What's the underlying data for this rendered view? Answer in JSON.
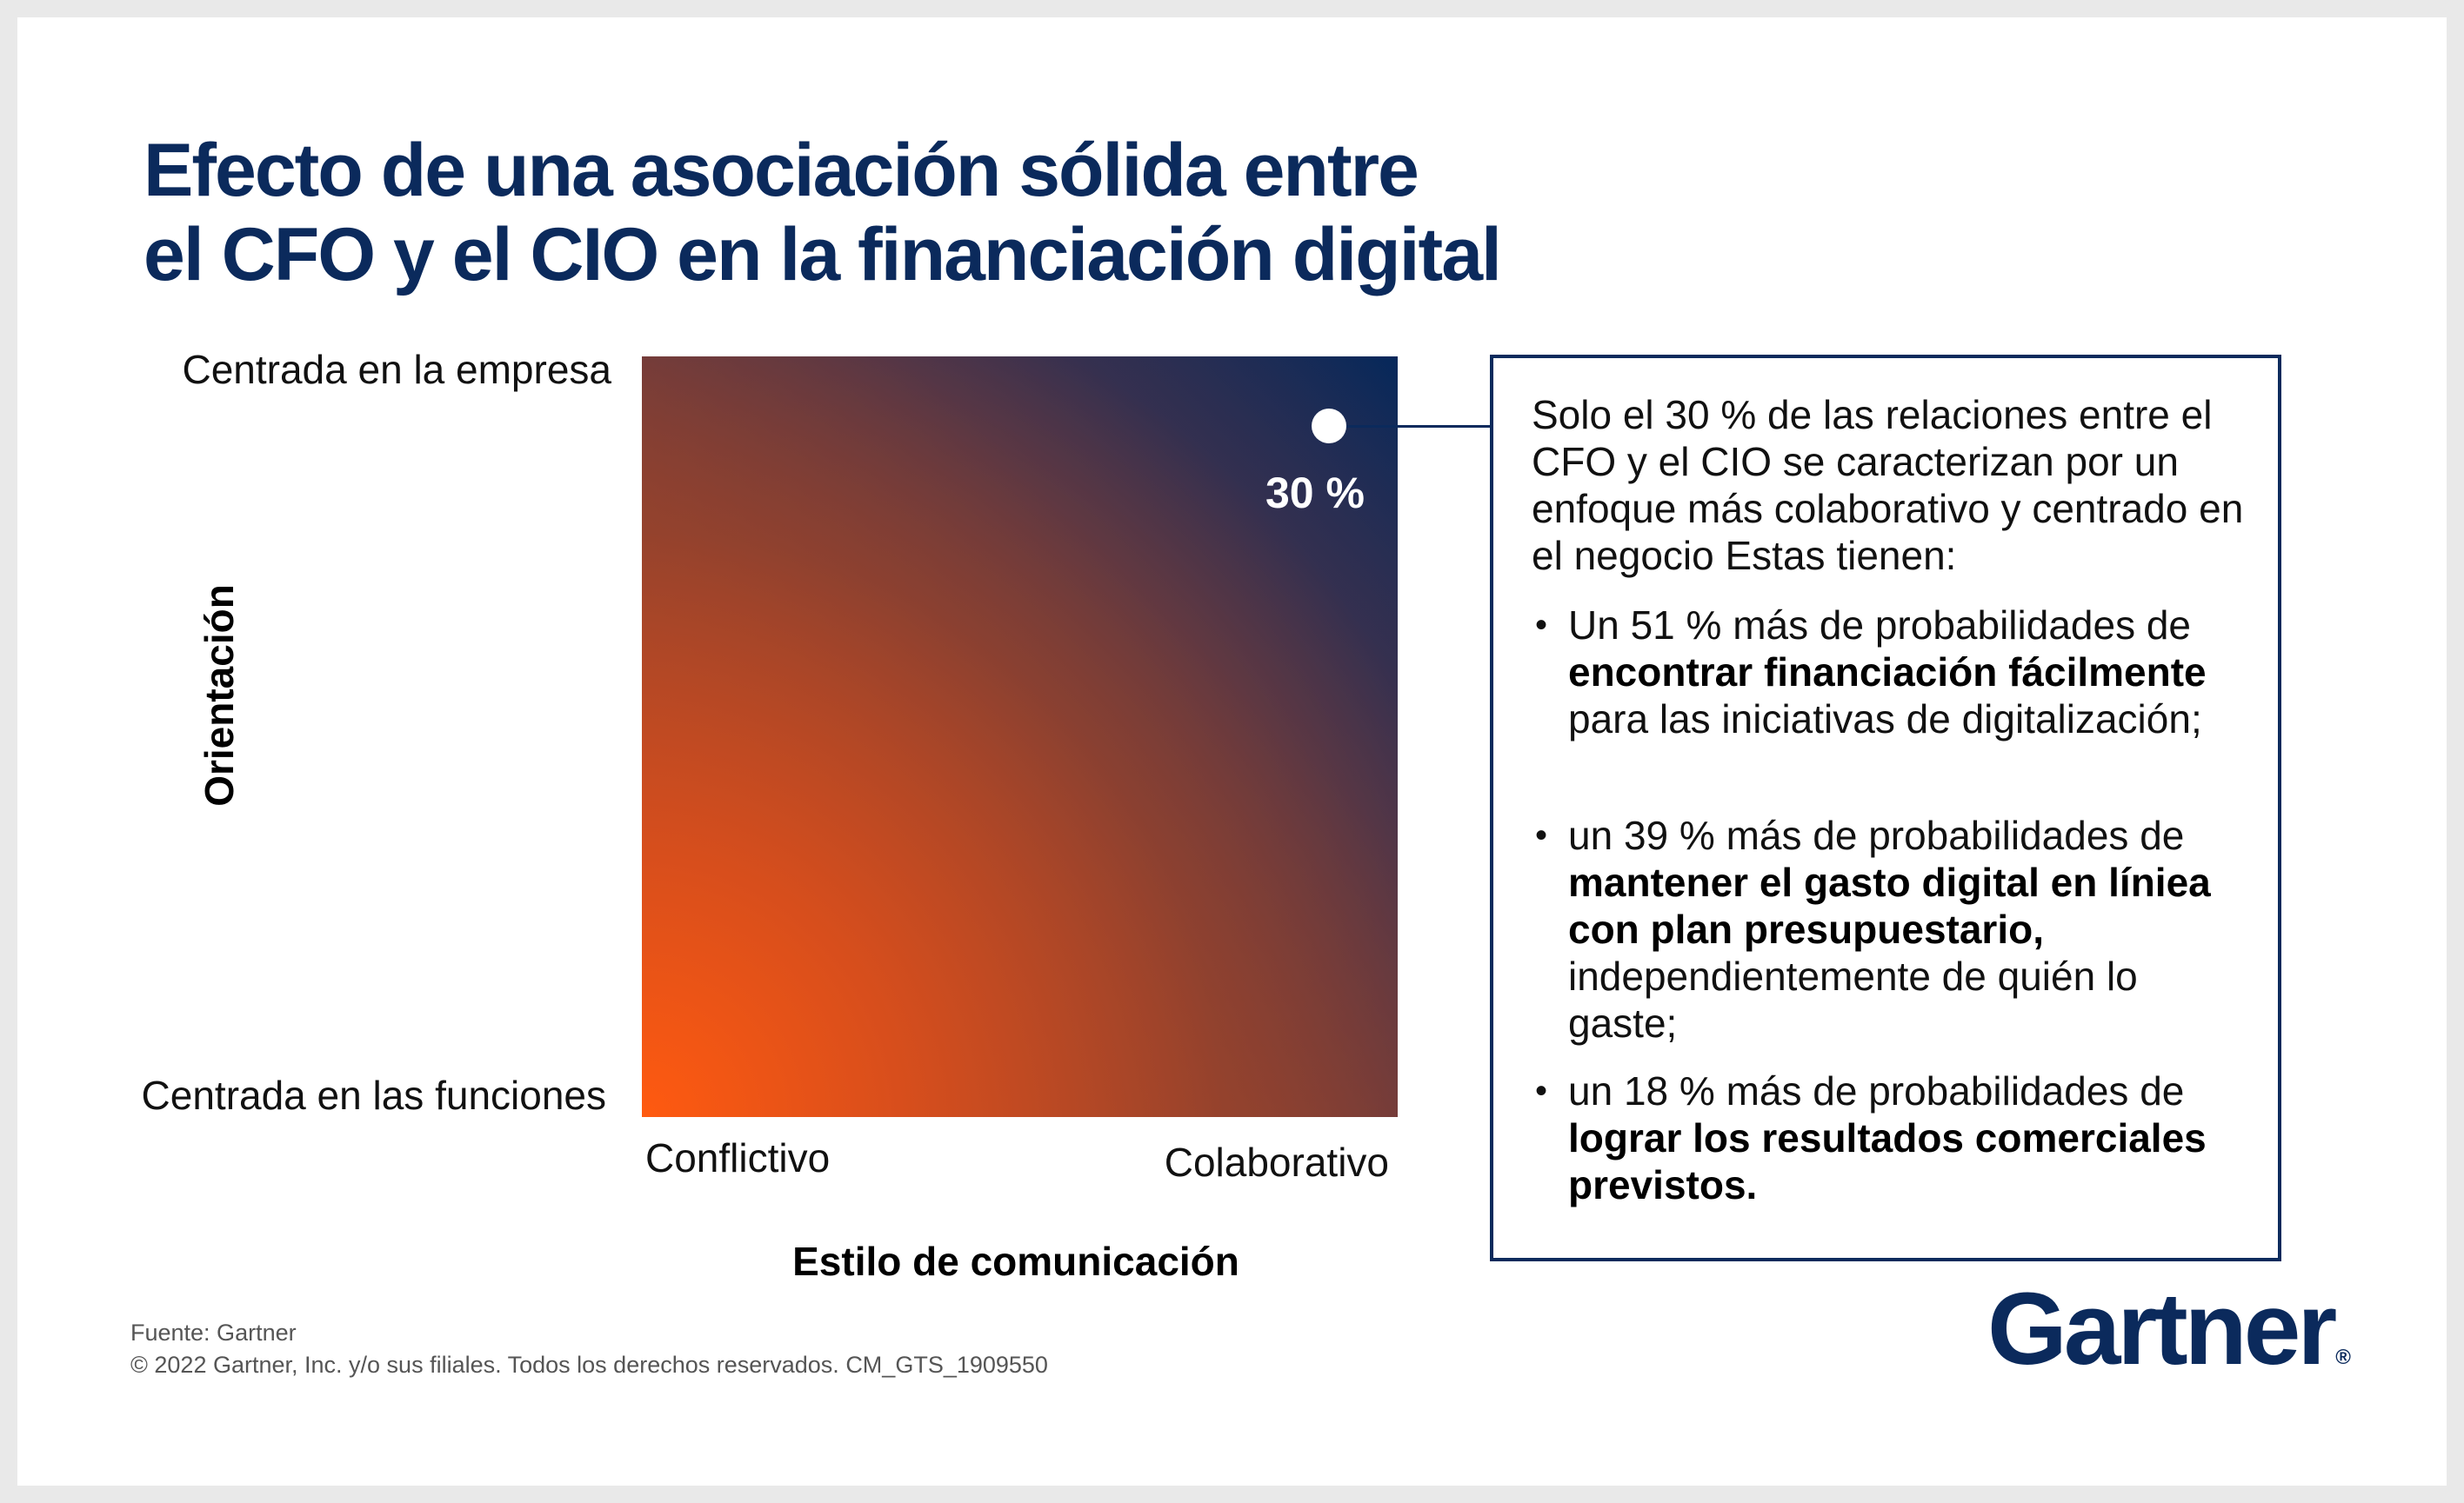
{
  "title": {
    "line1": "Efecto de una asociación sólida entre",
    "line2": "el CFO y el CIO en la financiación digital"
  },
  "chart": {
    "y_axis_title": "Orientación",
    "y_top_label": "Centrada en la empresa",
    "y_bottom_label": "Centrada en las funciones",
    "x_axis_title": "Estilo de comunicación",
    "x_left_label": "Conflictivo",
    "x_right_label": "Colaborativo",
    "point_label": "30 %",
    "colors": {
      "bottom_left": "#ff5a10",
      "top_right": "#00275c"
    }
  },
  "callout": {
    "intro": "Solo el 30 % de las relaciones entre el CFO y el CIO se caracterizan por un enfoque más colaborativo y centrado en el negocio Estas tienen:",
    "bullets": [
      {
        "pre": "Un 51 % más de probabilidades de ",
        "bold": "encontrar financiación fácilmente",
        "post": " para las iniciativas de digitalización;"
      },
      {
        "pre": "un 39 % más de probabilidades de ",
        "bold": "mantener el gasto digital en líniea con plan presupuestario,",
        "post": " independientemente de quién lo gaste;"
      },
      {
        "pre": "un 18 % más de probabilidades de ",
        "bold": "lograr los resultados comerciales previstos.",
        "post": ""
      }
    ]
  },
  "footer": {
    "source": "Fuente: Gartner",
    "copyright": "© 2022 Gartner, Inc. y/o sus filiales. Todos los derechos reservados. CM_GTS_1909550"
  },
  "logo": {
    "text": "Gartner",
    "registered": "®",
    "color": "#0b2a5c"
  }
}
